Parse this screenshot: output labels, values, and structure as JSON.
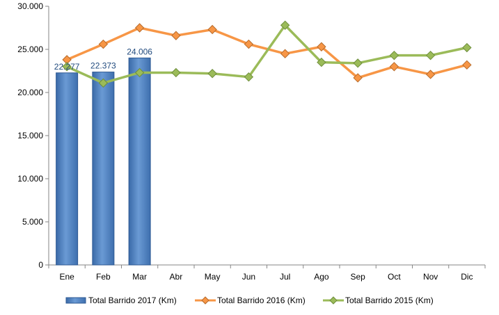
{
  "chart_data": {
    "type": "bar+line",
    "categories": [
      "Ene",
      "Feb",
      "Mar",
      "Abr",
      "May",
      "Jun",
      "Jul",
      "Ago",
      "Sep",
      "Oct",
      "Nov",
      "Dic"
    ],
    "ylim": [
      0,
      30000
    ],
    "yticks": [
      0,
      5000,
      10000,
      15000,
      20000,
      25000,
      30000
    ],
    "ytick_labels": [
      "0",
      "5.000",
      "10.000",
      "15.000",
      "20.000",
      "25.000",
      "30.000"
    ],
    "grid": false,
    "legend_position": "bottom",
    "series": [
      {
        "name": "Total Barrido 2017 (Km)",
        "kind": "bar",
        "color": "#4F81BD",
        "values": [
          22277,
          22373,
          24006,
          null,
          null,
          null,
          null,
          null,
          null,
          null,
          null,
          null
        ],
        "data_labels": [
          "22.277",
          "22.373",
          "24.006"
        ]
      },
      {
        "name": "Total Barrido 2016 (Km)",
        "kind": "line",
        "color": "#F79646",
        "marker": "diamond",
        "values": [
          23800,
          25600,
          27500,
          26600,
          27300,
          25600,
          24500,
          25300,
          21700,
          23000,
          22100,
          23200
        ]
      },
      {
        "name": "Total Barrido 2015 (Km)",
        "kind": "line",
        "color": "#9BBB59",
        "marker": "diamond",
        "values": [
          23000,
          21100,
          22300,
          22300,
          22200,
          21800,
          27800,
          23500,
          23400,
          24300,
          24300,
          25200
        ]
      }
    ]
  }
}
